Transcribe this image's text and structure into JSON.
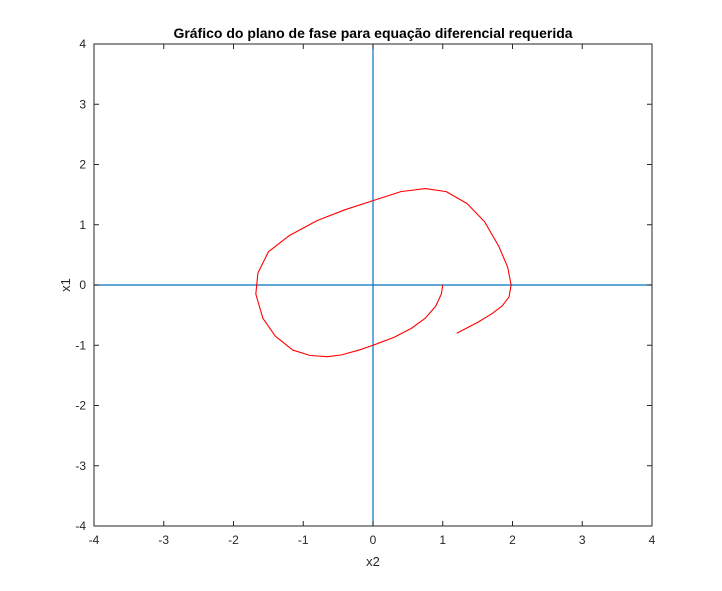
{
  "chart_data": {
    "type": "line",
    "title": "Gráfico do plano de fase para equação diferencial requerida",
    "xlabel": "x2",
    "ylabel": "x1",
    "xlim": [
      -4,
      4
    ],
    "ylim": [
      -4,
      4
    ],
    "xticks": [
      -4,
      -3,
      -2,
      -1,
      0,
      1,
      2,
      3,
      4
    ],
    "yticks": [
      -4,
      -3,
      -2,
      -1,
      0,
      1,
      2,
      3,
      4
    ],
    "xtick_labels": [
      "-4",
      "-3",
      "-2",
      "-1",
      "0",
      "1",
      "2",
      "3",
      "4"
    ],
    "ytick_labels": [
      "-4",
      "-3",
      "-2",
      "-1",
      "0",
      "1",
      "2",
      "3",
      "4"
    ],
    "grid": false,
    "reference_lines": [
      {
        "orientation": "horizontal",
        "value": 0,
        "color": "#0072bd"
      },
      {
        "orientation": "vertical",
        "value": 0,
        "color": "#0072bd"
      }
    ],
    "series": [
      {
        "color": "#ff0000",
        "x": [
          1.0,
          0.98,
          0.9,
          0.75,
          0.55,
          0.3,
          0.0,
          -0.2,
          -0.45,
          -0.65,
          -0.9,
          -1.15,
          -1.4,
          -1.58,
          -1.68,
          -1.65,
          -1.5,
          -1.2,
          -0.8,
          -0.4,
          0.0,
          0.4,
          0.75,
          1.05,
          1.35,
          1.6,
          1.8,
          1.93,
          1.98,
          1.95,
          1.85,
          1.7,
          1.5,
          1.2
        ],
        "y": [
          0.0,
          -0.15,
          -0.35,
          -0.55,
          -0.72,
          -0.87,
          -1.0,
          -1.08,
          -1.16,
          -1.19,
          -1.17,
          -1.08,
          -0.85,
          -0.55,
          -0.15,
          0.2,
          0.55,
          0.82,
          1.07,
          1.25,
          1.4,
          1.55,
          1.6,
          1.55,
          1.35,
          1.05,
          0.65,
          0.3,
          0.0,
          -0.2,
          -0.35,
          -0.48,
          -0.62,
          -0.8
        ]
      }
    ]
  }
}
